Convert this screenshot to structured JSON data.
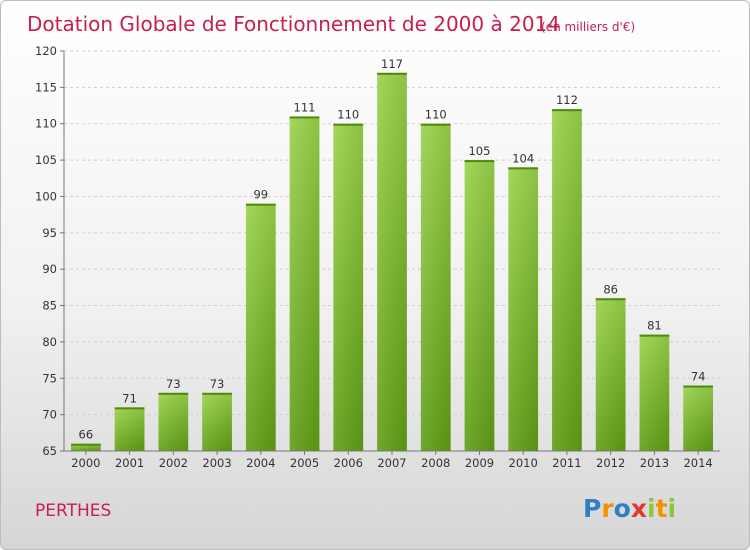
{
  "chart_data": {
    "type": "bar",
    "title": "Dotation Globale de Fonctionnement de 2000 à 2014",
    "subtitle": "(en milliers d'€)",
    "categories": [
      "2000",
      "2001",
      "2002",
      "2003",
      "2004",
      "2005",
      "2006",
      "2007",
      "2008",
      "2009",
      "2010",
      "2011",
      "2012",
      "2013",
      "2014"
    ],
    "values": [
      66,
      71,
      73,
      73,
      99,
      111,
      110,
      117,
      110,
      105,
      104,
      112,
      86,
      81,
      74
    ],
    "ylim": [
      65,
      120
    ],
    "yticks": [
      65,
      70,
      75,
      80,
      85,
      90,
      95,
      100,
      105,
      110,
      115,
      120
    ],
    "grid": true,
    "bar_color": "#7fbf2a",
    "xlabel": "",
    "ylabel": ""
  },
  "commune": "PERTHES",
  "logo": {
    "letters": [
      "P",
      "r",
      "o",
      "x",
      "i",
      "t",
      "i"
    ],
    "colors": [
      "#2e7fc4",
      "#f39200",
      "#2e7fc4",
      "#e4372f",
      "#8cc63f",
      "#f39200",
      "#8cc63f"
    ]
  },
  "colors": {
    "title": "#c5204e",
    "bar": "#7fbf2a",
    "bar_dark": "#5d9b14"
  }
}
